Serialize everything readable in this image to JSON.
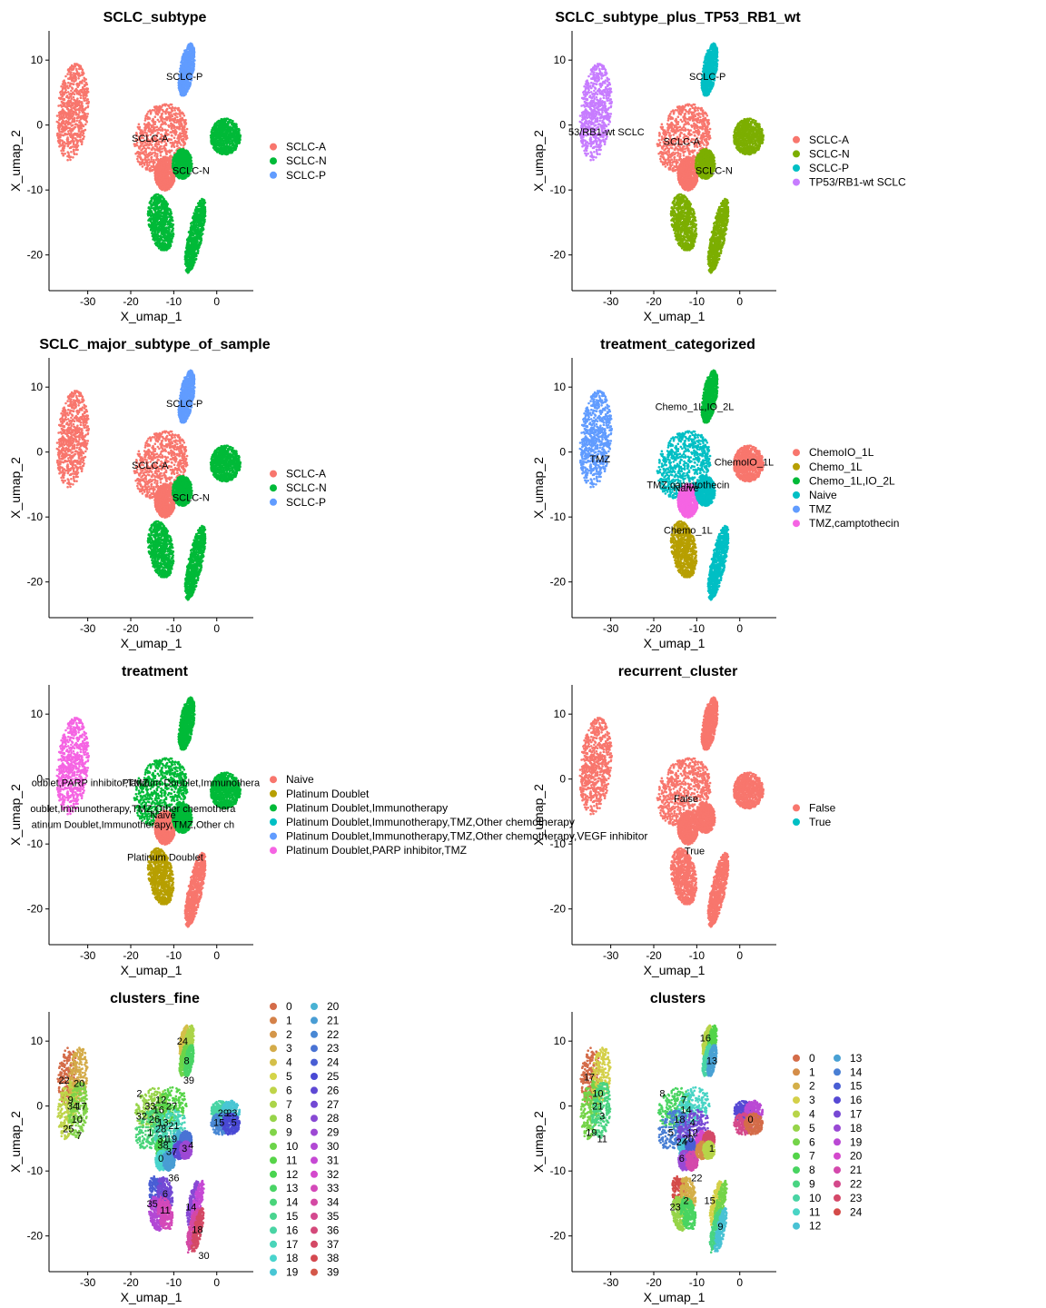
{
  "colors6": [
    "#F8766D",
    "#B79F00",
    "#00BA38",
    "#00BFC4",
    "#619CFF",
    "#F564E3"
  ],
  "chart_data": [
    {
      "id": "p1",
      "type": "scatter",
      "title": "SCLC_subtype",
      "xlabel": "X_umap_1",
      "ylabel": "X_umap_2",
      "xticks": [
        -30,
        -20,
        -10,
        0
      ],
      "yticks": [
        10,
        0,
        -10,
        -20
      ],
      "xlim": [
        -39,
        8.5
      ],
      "ylim": [
        -25.5,
        14.5
      ],
      "grid": false,
      "legend_position": "right",
      "legend": [
        "SCLC-A",
        "SCLC-N",
        "SCLC-P"
      ],
      "legend_colors": [
        "#F8766D",
        "#00BA38",
        "#619CFF"
      ],
      "annotations": [
        {
          "text": "SCLC-P",
          "x": -7.5,
          "y": 7.5
        },
        {
          "text": "SCLC-A",
          "x": -15.5,
          "y": -2
        },
        {
          "text": "SCLC-N",
          "x": -6,
          "y": -7
        }
      ]
    },
    {
      "id": "p2",
      "type": "scatter",
      "title": "SCLC_subtype_plus_TP53_RB1_wt",
      "xlabel": "X_umap_1",
      "ylabel": "X_umap_2",
      "xticks": [
        -30,
        -20,
        -10,
        0
      ],
      "yticks": [
        10,
        0,
        -10,
        -20
      ],
      "xlim": [
        -39,
        8.5
      ],
      "ylim": [
        -25.5,
        14.5
      ],
      "grid": false,
      "legend_position": "right",
      "legend": [
        "SCLC-A",
        "SCLC-N",
        "SCLC-P",
        "TP53/RB1-wt SCLC"
      ],
      "legend_colors": [
        "#F8766D",
        "#7CAE00",
        "#00BFC4",
        "#C77CFF"
      ],
      "annotations": [
        {
          "text": "SCLC-P",
          "x": -7.5,
          "y": 7.5
        },
        {
          "text": "53/RB1-wt SCLC",
          "x": -31,
          "y": -1
        },
        {
          "text": "SCLC-A",
          "x": -13.5,
          "y": -2.5
        },
        {
          "text": "SCLC-N",
          "x": -6,
          "y": -7
        }
      ]
    },
    {
      "id": "p3",
      "type": "scatter",
      "title": "SCLC_major_subtype_of_sample",
      "xlabel": "X_umap_1",
      "ylabel": "X_umap_2",
      "xticks": [
        -30,
        -20,
        -10,
        0
      ],
      "yticks": [
        10,
        0,
        -10,
        -20
      ],
      "xlim": [
        -39,
        8.5
      ],
      "ylim": [
        -25.5,
        14.5
      ],
      "grid": false,
      "legend_position": "right",
      "legend": [
        "SCLC-A",
        "SCLC-N",
        "SCLC-P"
      ],
      "legend_colors": [
        "#F8766D",
        "#00BA38",
        "#619CFF"
      ],
      "annotations": [
        {
          "text": "SCLC-P",
          "x": -7.5,
          "y": 7.5
        },
        {
          "text": "SCLC-A",
          "x": -15.5,
          "y": -2
        },
        {
          "text": "SCLC-N",
          "x": -6,
          "y": -7
        }
      ]
    },
    {
      "id": "p4",
      "type": "scatter",
      "title": "treatment_categorized",
      "xlabel": "X_umap_1",
      "ylabel": "X_umap_2",
      "xticks": [
        -30,
        -20,
        -10,
        0
      ],
      "yticks": [
        10,
        0,
        -10,
        -20
      ],
      "xlim": [
        -39,
        8.5
      ],
      "ylim": [
        -25.5,
        14.5
      ],
      "grid": false,
      "legend_position": "right",
      "legend": [
        "ChemoIO_1L",
        "Chemo_1L",
        "Chemo_1L,IO_2L",
        "Naive",
        "TMZ",
        "TMZ,camptothecin"
      ],
      "legend_colors": [
        "#F8766D",
        "#B79F00",
        "#00BA38",
        "#00BFC4",
        "#619CFF",
        "#F564E3"
      ],
      "annotations": [
        {
          "text": "Chemo_1L,IO_2L",
          "x": -10.5,
          "y": 7
        },
        {
          "text": "TMZ",
          "x": -32.5,
          "y": -1
        },
        {
          "text": "ChemoIO_1L",
          "x": 1,
          "y": -1.5
        },
        {
          "text": "TMZ,camptothecin",
          "x": -12,
          "y": -5
        },
        {
          "text": "Naive",
          "x": -12.5,
          "y": -5.5
        },
        {
          "text": "Chemo_1L",
          "x": -12,
          "y": -12
        }
      ]
    },
    {
      "id": "p5",
      "type": "scatter",
      "title": "treatment",
      "xlabel": "X_umap_1",
      "ylabel": "X_umap_2",
      "xticks": [
        -30,
        -20,
        -10,
        0
      ],
      "yticks": [
        10,
        0,
        -10,
        -20
      ],
      "xlim": [
        -39,
        8.5
      ],
      "ylim": [
        -25.5,
        14.5
      ],
      "grid": false,
      "legend_position": "right",
      "legend": [
        "Naive",
        "Platinum Doublet",
        "Platinum Doublet,Immunotherapy",
        "Platinum Doublet,Immunotherapy,TMZ,Other chemotherapy",
        "Platinum Doublet,Immunotherapy,TMZ,Other chemotherapy,VEGF inhibitor",
        "Platinum Doublet,PARP inhibitor,TMZ"
      ],
      "legend_colors": [
        "#F8766D",
        "#B79F00",
        "#00BA38",
        "#00BFC4",
        "#619CFF",
        "#F564E3"
      ],
      "annotations": [
        {
          "text": "oublet,PARP inhibitor,TMZ",
          "x": -29.5,
          "y": -0.5
        },
        {
          "text": "Platinum Doublet,Immunothera",
          "x": -6,
          "y": -0.5
        },
        {
          "text": "Naive",
          "x": -12.5,
          "y": -5.5
        },
        {
          "text": "oublet,Immunotherapy,TMZ,Other chemothera",
          "x": -19.5,
          "y": -4.5
        },
        {
          "text": "atinum Doublet,Immunotherapy,TMZ,Other ch",
          "x": -19.5,
          "y": -7
        },
        {
          "text": "Platinum Doublet",
          "x": -12,
          "y": -12
        }
      ]
    },
    {
      "id": "p6",
      "type": "scatter",
      "title": "recurrent_cluster",
      "xlabel": "X_umap_1",
      "ylabel": "X_umap_2",
      "xticks": [
        -30,
        -20,
        -10,
        0
      ],
      "yticks": [
        10,
        0,
        -10,
        -20
      ],
      "xlim": [
        -39,
        8.5
      ],
      "ylim": [
        -25.5,
        14.5
      ],
      "grid": false,
      "legend_position": "right",
      "legend": [
        "False",
        "True"
      ],
      "legend_colors": [
        "#F8766D",
        "#00BFC4"
      ],
      "annotations": [
        {
          "text": "False",
          "x": -12.5,
          "y": -3
        },
        {
          "text": "True",
          "x": -10.5,
          "y": -11
        }
      ]
    },
    {
      "id": "p7",
      "type": "scatter",
      "title": "clusters_fine",
      "xlabel": "X_umap_1",
      "ylabel": "X_umap_2",
      "xticks": [
        -30,
        -20,
        -10,
        0
      ],
      "yticks": [
        10,
        0,
        -10,
        -20
      ],
      "xlim": [
        -39,
        8.5
      ],
      "ylim": [
        -25.5,
        14.5
      ],
      "grid": false,
      "legend_position": "right",
      "legend": [
        "0",
        "1",
        "2",
        "3",
        "4",
        "5",
        "6",
        "7",
        "8",
        "9",
        "10",
        "11",
        "12",
        "13",
        "14",
        "15",
        "16",
        "17",
        "18",
        "19",
        "20",
        "21",
        "22",
        "23",
        "24",
        "25",
        "26",
        "27",
        "28",
        "29",
        "30",
        "31",
        "32",
        "33",
        "34",
        "35",
        "36",
        "37",
        "38",
        "39"
      ],
      "legend_palette": "hue",
      "annotations": [
        {
          "text": "24",
          "x": -8,
          "y": 10
        },
        {
          "text": "8",
          "x": -7,
          "y": 7
        },
        {
          "text": "39",
          "x": -6.5,
          "y": 4
        },
        {
          "text": "22",
          "x": -35.5,
          "y": 4
        },
        {
          "text": "20",
          "x": -32,
          "y": 3.5
        },
        {
          "text": "2",
          "x": -18,
          "y": 2
        },
        {
          "text": "12",
          "x": -13,
          "y": 1
        },
        {
          "text": "9",
          "x": -34,
          "y": 1
        },
        {
          "text": "34",
          "x": -33.5,
          "y": 0
        },
        {
          "text": "17",
          "x": -31.5,
          "y": 0
        },
        {
          "text": "33",
          "x": -15.5,
          "y": 0
        },
        {
          "text": "16",
          "x": -13.5,
          "y": -0.5
        },
        {
          "text": "27",
          "x": -10.5,
          "y": 0
        },
        {
          "text": "32",
          "x": -17.5,
          "y": -1.5
        },
        {
          "text": "26",
          "x": -14.5,
          "y": -2
        },
        {
          "text": "13",
          "x": -12.5,
          "y": -2.5
        },
        {
          "text": "21",
          "x": -10,
          "y": -3
        },
        {
          "text": "10",
          "x": -32.5,
          "y": -2
        },
        {
          "text": "28",
          "x": -13,
          "y": -3.5
        },
        {
          "text": "1",
          "x": -15.5,
          "y": -4
        },
        {
          "text": "25",
          "x": -34.5,
          "y": -3.5
        },
        {
          "text": "15",
          "x": 0.5,
          "y": -2.5
        },
        {
          "text": "5",
          "x": 4,
          "y": -2.5
        },
        {
          "text": "29",
          "x": 1.5,
          "y": -1
        },
        {
          "text": "23",
          "x": 3.5,
          "y": -1
        },
        {
          "text": "31",
          "x": -12.5,
          "y": -5
        },
        {
          "text": "19",
          "x": -10.5,
          "y": -5
        },
        {
          "text": "7",
          "x": -32,
          "y": -4.5
        },
        {
          "text": "38",
          "x": -12.5,
          "y": -6
        },
        {
          "text": "3",
          "x": -7.5,
          "y": -6.5
        },
        {
          "text": "4",
          "x": -6,
          "y": -6
        },
        {
          "text": "37",
          "x": -10.5,
          "y": -7
        },
        {
          "text": "0",
          "x": -13,
          "y": -8
        },
        {
          "text": "36",
          "x": -10,
          "y": -11
        },
        {
          "text": "6",
          "x": -12,
          "y": -13.5
        },
        {
          "text": "35",
          "x": -15,
          "y": -15
        },
        {
          "text": "11",
          "x": -12,
          "y": -16
        },
        {
          "text": "14",
          "x": -6,
          "y": -15.5
        },
        {
          "text": "18",
          "x": -4.5,
          "y": -19
        },
        {
          "text": "30",
          "x": -3,
          "y": -23
        }
      ]
    },
    {
      "id": "p8",
      "type": "scatter",
      "title": "clusters",
      "xlabel": "X_umap_1",
      "ylabel": "X_umap_2",
      "xticks": [
        -30,
        -20,
        -10,
        0
      ],
      "yticks": [
        10,
        0,
        -10,
        -20
      ],
      "xlim": [
        -39,
        8.5
      ],
      "ylim": [
        -25.5,
        14.5
      ],
      "grid": false,
      "legend_position": "right",
      "legend": [
        "0",
        "1",
        "2",
        "3",
        "4",
        "5",
        "6",
        "7",
        "8",
        "9",
        "10",
        "11",
        "12",
        "13",
        "14",
        "15",
        "16",
        "17",
        "18",
        "19",
        "20",
        "21",
        "22",
        "23",
        "24"
      ],
      "legend_palette": "hue",
      "annotations": [
        {
          "text": "16",
          "x": -8,
          "y": 10.5
        },
        {
          "text": "13",
          "x": -6.5,
          "y": 7
        },
        {
          "text": "17",
          "x": -35,
          "y": 4.5
        },
        {
          "text": "10",
          "x": -33,
          "y": 2
        },
        {
          "text": "8",
          "x": -18,
          "y": 2
        },
        {
          "text": "7",
          "x": -13,
          "y": 1
        },
        {
          "text": "21",
          "x": -33,
          "y": 0
        },
        {
          "text": "14",
          "x": -12.5,
          "y": -0.5
        },
        {
          "text": "3",
          "x": -32,
          "y": -1.5
        },
        {
          "text": "18",
          "x": -14,
          "y": -2
        },
        {
          "text": "4",
          "x": -11,
          "y": -2.5
        },
        {
          "text": "0",
          "x": 2.5,
          "y": -2
        },
        {
          "text": "19",
          "x": -34.5,
          "y": -4
        },
        {
          "text": "5",
          "x": -16,
          "y": -4
        },
        {
          "text": "12",
          "x": -11,
          "y": -4
        },
        {
          "text": "11",
          "x": -32,
          "y": -5
        },
        {
          "text": "20",
          "x": -12,
          "y": -5
        },
        {
          "text": "24",
          "x": -13.5,
          "y": -5.5
        },
        {
          "text": "1",
          "x": -6.5,
          "y": -6.5
        },
        {
          "text": "6",
          "x": -13.5,
          "y": -8
        },
        {
          "text": "22",
          "x": -10,
          "y": -11
        },
        {
          "text": "2",
          "x": -12.5,
          "y": -14.5
        },
        {
          "text": "15",
          "x": -7,
          "y": -14.5
        },
        {
          "text": "23",
          "x": -15,
          "y": -15.5
        },
        {
          "text": "9",
          "x": -4.5,
          "y": -18.5
        }
      ]
    }
  ]
}
